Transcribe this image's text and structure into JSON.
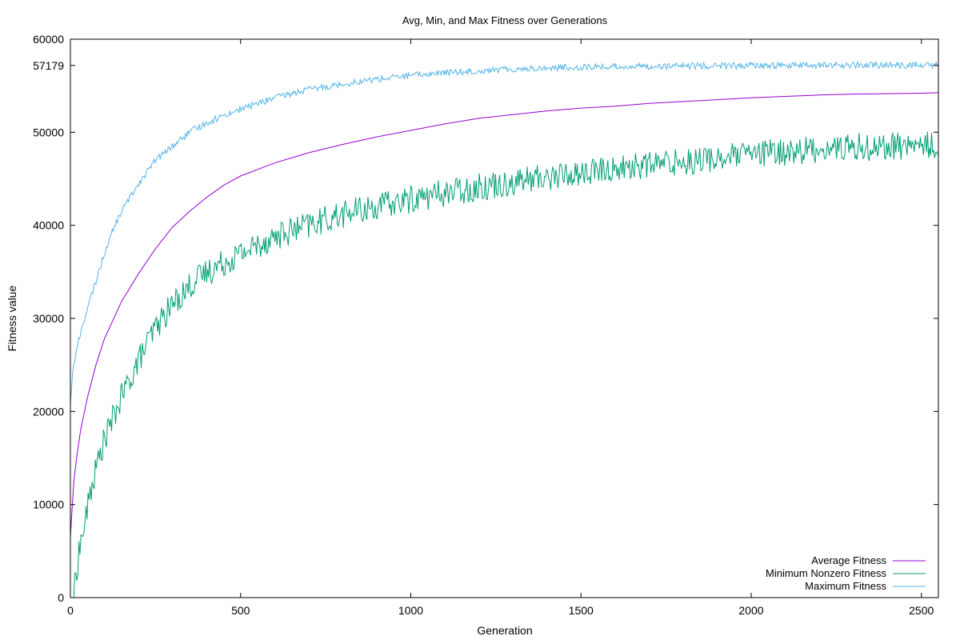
{
  "chart_data": {
    "type": "line",
    "title": "Avg, Min, and Max Fitness over Generations",
    "xlabel": "Generation",
    "ylabel": "Fitness value",
    "xlim": [
      0,
      2550
    ],
    "ylim": [
      0,
      60000
    ],
    "x_ticks": [
      0,
      500,
      1000,
      1500,
      2000,
      2500
    ],
    "y_ticks": [
      0,
      10000,
      20000,
      30000,
      40000,
      50000,
      57179,
      60000
    ],
    "grid": false,
    "legend_position": "bottom-right",
    "series": [
      {
        "name": "Average Fitness",
        "color": "#9400d3",
        "noise": 0,
        "points": [
          [
            0,
            6500
          ],
          [
            5,
            9500
          ],
          [
            10,
            12500
          ],
          [
            20,
            15500
          ],
          [
            30,
            18000
          ],
          [
            50,
            21500
          ],
          [
            75,
            25000
          ],
          [
            100,
            27800
          ],
          [
            150,
            31800
          ],
          [
            200,
            34800
          ],
          [
            250,
            37500
          ],
          [
            300,
            39800
          ],
          [
            350,
            41500
          ],
          [
            400,
            43000
          ],
          [
            450,
            44300
          ],
          [
            500,
            45300
          ],
          [
            600,
            46700
          ],
          [
            700,
            47800
          ],
          [
            800,
            48700
          ],
          [
            900,
            49500
          ],
          [
            1000,
            50200
          ],
          [
            1100,
            50900
          ],
          [
            1200,
            51500
          ],
          [
            1300,
            51900
          ],
          [
            1400,
            52300
          ],
          [
            1500,
            52600
          ],
          [
            1600,
            52800
          ],
          [
            1700,
            53100
          ],
          [
            1800,
            53300
          ],
          [
            1900,
            53500
          ],
          [
            2000,
            53700
          ],
          [
            2100,
            53850
          ],
          [
            2200,
            54000
          ],
          [
            2300,
            54100
          ],
          [
            2400,
            54150
          ],
          [
            2500,
            54200
          ],
          [
            2550,
            54250
          ]
        ]
      },
      {
        "name": "Minimum Nonzero Fitness",
        "color": "#009e73",
        "noise": 1500,
        "points": [
          [
            10,
            0
          ],
          [
            15,
            2000
          ],
          [
            25,
            5000
          ],
          [
            40,
            7500
          ],
          [
            60,
            11500
          ],
          [
            80,
            14500
          ],
          [
            100,
            17000
          ],
          [
            150,
            21500
          ],
          [
            200,
            25500
          ],
          [
            250,
            29000
          ],
          [
            300,
            31500
          ],
          [
            350,
            33500
          ],
          [
            400,
            35000
          ],
          [
            450,
            36000
          ],
          [
            500,
            37000
          ],
          [
            600,
            38800
          ],
          [
            700,
            40000
          ],
          [
            800,
            41200
          ],
          [
            900,
            42000
          ],
          [
            1000,
            42800
          ],
          [
            1100,
            43500
          ],
          [
            1200,
            44100
          ],
          [
            1300,
            44700
          ],
          [
            1400,
            45200
          ],
          [
            1500,
            45600
          ],
          [
            1600,
            46100
          ],
          [
            1700,
            46500
          ],
          [
            1800,
            46900
          ],
          [
            1900,
            47200
          ],
          [
            2000,
            47600
          ],
          [
            2100,
            47900
          ],
          [
            2200,
            48200
          ],
          [
            2300,
            48400
          ],
          [
            2400,
            48500
          ],
          [
            2500,
            48600
          ],
          [
            2550,
            48600
          ]
        ]
      },
      {
        "name": "Maximum Fitness",
        "color": "#56b4e9",
        "noise": 350,
        "points": [
          [
            0,
            21000
          ],
          [
            5,
            23500
          ],
          [
            10,
            25000
          ],
          [
            20,
            27000
          ],
          [
            30,
            28500
          ],
          [
            50,
            31000
          ],
          [
            75,
            34000
          ],
          [
            100,
            37000
          ],
          [
            125,
            39500
          ],
          [
            150,
            41500
          ],
          [
            200,
            44500
          ],
          [
            250,
            47000
          ],
          [
            300,
            48500
          ],
          [
            350,
            50000
          ],
          [
            400,
            51000
          ],
          [
            450,
            51800
          ],
          [
            500,
            52500
          ],
          [
            600,
            53700
          ],
          [
            700,
            54600
          ],
          [
            800,
            55200
          ],
          [
            900,
            55700
          ],
          [
            1000,
            56100
          ],
          [
            1100,
            56400
          ],
          [
            1200,
            56600
          ],
          [
            1300,
            56800
          ],
          [
            1400,
            56900
          ],
          [
            1500,
            57000
          ],
          [
            1600,
            57050
          ],
          [
            1700,
            57100
          ],
          [
            1800,
            57100
          ],
          [
            1900,
            57150
          ],
          [
            2000,
            57150
          ],
          [
            2100,
            57180
          ],
          [
            2200,
            57200
          ],
          [
            2300,
            57200
          ],
          [
            2400,
            57200
          ],
          [
            2500,
            57200
          ],
          [
            2550,
            57200
          ]
        ]
      }
    ]
  }
}
